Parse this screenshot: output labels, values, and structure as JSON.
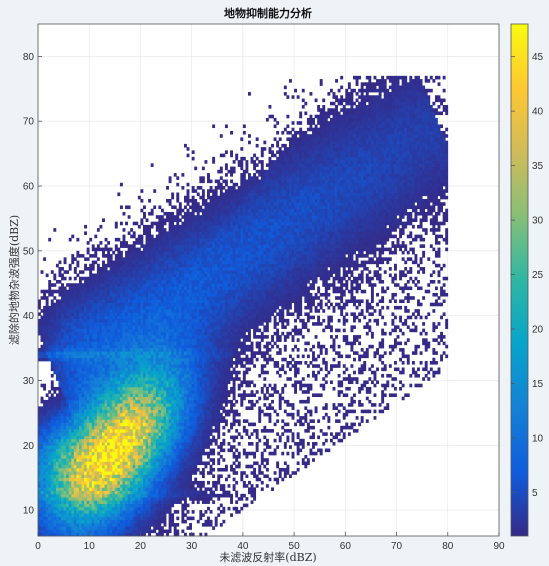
{
  "chart_data": {
    "type": "heatmap",
    "title": "地物抑制能力分析",
    "xlabel": "未滤波反射率(dBZ)",
    "ylabel": "滤除的地物杂波强度(dBZ)",
    "xlim": [
      0,
      90
    ],
    "ylim": [
      6,
      85
    ],
    "x_ticks": [
      0,
      10,
      20,
      30,
      40,
      50,
      60,
      70,
      80,
      90
    ],
    "y_ticks": [
      10,
      20,
      30,
      40,
      50,
      60,
      70,
      80
    ],
    "grid": true,
    "colormap": "parula",
    "colorbar": {
      "range": [
        1,
        48
      ],
      "ticks": [
        5,
        10,
        15,
        20,
        25,
        30,
        35,
        40,
        45
      ],
      "colors": [
        "#352a87",
        "#0f5cdd",
        "#1481d6",
        "#06a4ca",
        "#2eb7a4",
        "#87bf77",
        "#d1bb59",
        "#fec832",
        "#f9fb0e"
      ]
    },
    "bin_size": 0.5,
    "density_features": {
      "main_cluster_center": [
        16,
        20
      ],
      "main_cluster_peak_count": 44,
      "horizontal_bands_y": [
        12.5,
        34
      ],
      "upper_arm_from": [
        10,
        34
      ],
      "upper_arm_to": [
        75,
        68
      ],
      "data_extent_x": [
        0,
        80
      ],
      "data_extent_y": [
        6,
        77
      ]
    }
  }
}
